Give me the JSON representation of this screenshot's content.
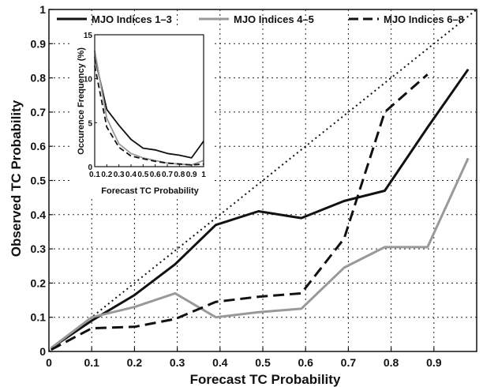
{
  "chart_data": [
    {
      "type": "line",
      "xlabel": "Forecast TC Probability",
      "ylabel": "Observed TC Probability",
      "xlim": [
        0,
        1
      ],
      "ylim": [
        0,
        1
      ],
      "x_ticks": [
        "0",
        "0.1",
        "0.2",
        "0.3",
        "0.4",
        "0.5",
        "0.6",
        "0.7",
        "0.8",
        "0.9"
      ],
      "y_ticks": [
        "0",
        "0.1",
        "0.2",
        "0.3",
        "0.4",
        "0.5",
        "0.6",
        "0.7",
        "0.8",
        "0.9",
        "1"
      ],
      "grid": true,
      "legend_position": "top",
      "series": [
        {
          "name": "MJO Indices 1–3",
          "color": "#111111",
          "dash": "solid",
          "x": [
            0.005,
            0.1,
            0.2,
            0.295,
            0.39,
            0.49,
            0.59,
            0.69,
            0.785,
            0.885,
            0.98
          ],
          "y": [
            0.01,
            0.09,
            0.165,
            0.255,
            0.37,
            0.41,
            0.39,
            0.44,
            0.47,
            0.655,
            0.825
          ]
        },
        {
          "name": "MJO Indices 4–5",
          "color": "#999999",
          "dash": "solid",
          "x": [
            0.005,
            0.1,
            0.2,
            0.295,
            0.39,
            0.49,
            0.59,
            0.69,
            0.785,
            0.885,
            0.98
          ],
          "y": [
            0.01,
            0.1,
            0.13,
            0.17,
            0.1,
            0.115,
            0.125,
            0.245,
            0.305,
            0.305,
            0.565
          ]
        },
        {
          "name": "MJO Indices 6–8",
          "color": "#111111",
          "dash": "dashed",
          "x": [
            0.005,
            0.1,
            0.2,
            0.295,
            0.39,
            0.49,
            0.59,
            0.69,
            0.785,
            0.885
          ],
          "y": [
            0.005,
            0.068,
            0.072,
            0.095,
            0.145,
            0.16,
            0.17,
            0.33,
            0.7,
            0.81
          ]
        },
        {
          "name": "",
          "color": "#111111",
          "dash": "dotted",
          "x": [
            0,
            1
          ],
          "y": [
            0,
            1
          ]
        }
      ]
    },
    {
      "type": "line",
      "xlabel": "Forecast TC Probability",
      "ylabel": "Occurence Frequency (%)",
      "xlim": [
        0.1,
        1
      ],
      "ylim": [
        0,
        15
      ],
      "x_ticks": [
        "0.1",
        "0.2",
        "0.3",
        "0.4",
        "0.5",
        "0.6",
        "0.7",
        "0.8",
        "0.9",
        "1"
      ],
      "y_ticks": [
        "0",
        "5",
        "10",
        "15"
      ],
      "grid": false,
      "series": [
        {
          "name": "MJO Indices 1–3",
          "color": "#111111",
          "dash": "solid",
          "x": [
            0.1,
            0.2,
            0.3,
            0.4,
            0.5,
            0.6,
            0.7,
            0.8,
            0.9,
            1.0
          ],
          "y": [
            12.5,
            6.5,
            4.7,
            3.1,
            2.1,
            1.9,
            1.5,
            1.3,
            1.0,
            2.9
          ]
        },
        {
          "name": "MJO Indices 4–5",
          "color": "#999999",
          "dash": "solid",
          "x": [
            0.1,
            0.2,
            0.3,
            0.4,
            0.5,
            0.6,
            0.7,
            0.8,
            0.9,
            1.0
          ],
          "y": [
            13.2,
            5.5,
            2.6,
            1.5,
            1.0,
            0.7,
            0.4,
            0.3,
            0.2,
            0.7
          ]
        },
        {
          "name": "MJO Indices 6–8",
          "color": "#111111",
          "dash": "dashed",
          "x": [
            0.1,
            0.2,
            0.3,
            0.4,
            0.5,
            0.6,
            0.7,
            0.8,
            0.9,
            1.0
          ],
          "y": [
            11.5,
            4.5,
            2.2,
            1.2,
            0.9,
            0.6,
            0.4,
            0.3,
            0.2,
            0.3
          ]
        }
      ]
    }
  ]
}
